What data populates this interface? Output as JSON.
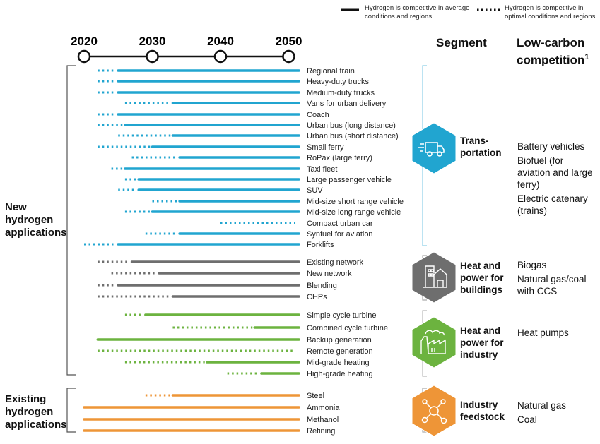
{
  "legend": {
    "solid": "Hydrogen is competitive in average conditions and regions",
    "dotted": "Hydrogen is competitive in optimal conditions and regions"
  },
  "headers": {
    "segment": "Segment",
    "competition": "Low-carbon competition",
    "competition_footnote": "1"
  },
  "groups": {
    "new": "New hydrogen applications",
    "existing": "Existing hydrogen applications"
  },
  "chart_data": {
    "type": "timeline",
    "timeline_ticks": [
      "2020",
      "2030",
      "2040",
      "2050"
    ],
    "colors": {
      "Transportation": "#21a5d0",
      "Heat and power for buildings": "#6e6e6e",
      "Heat and power for industry": "#6cb33f",
      "Industry feedstock": "#ee9537"
    },
    "segments": [
      {
        "name": "Transportation",
        "label_lines": [
          "Trans-",
          "portation"
        ],
        "icon": "truck-icon",
        "competition": [
          "Battery vehicles",
          "Biofuel (for aviation and large ferry)",
          "Electric catenary (trains)"
        ],
        "rows": [
          {
            "label": "Regional train",
            "optimal_from": 2022,
            "average_from": 2025
          },
          {
            "label": "Heavy-duty trucks",
            "optimal_from": 2022,
            "average_from": 2025
          },
          {
            "label": "Medium-duty trucks",
            "optimal_from": 2022,
            "average_from": 2025
          },
          {
            "label": "Vans for urban delivery",
            "optimal_from": 2026,
            "average_from": 2033
          },
          {
            "label": "Coach",
            "optimal_from": 2022,
            "average_from": 2025
          },
          {
            "label": "Urban bus (long distance)",
            "optimal_from": 2022,
            "average_from": 2026
          },
          {
            "label": "Urban bus (short distance)",
            "optimal_from": 2025,
            "average_from": 2033
          },
          {
            "label": "Small ferry",
            "optimal_from": 2022,
            "average_from": 2030
          },
          {
            "label": "RoPax (large ferry)",
            "optimal_from": 2027,
            "average_from": 2034
          },
          {
            "label": "Taxi fleet",
            "optimal_from": 2024,
            "average_from": 2026
          },
          {
            "label": "Large passenger vehicle",
            "optimal_from": 2026,
            "average_from": 2028
          },
          {
            "label": "SUV",
            "optimal_from": 2025,
            "average_from": 2028
          },
          {
            "label": "Mid-size short range vehicle",
            "optimal_from": 2030,
            "average_from": 2034
          },
          {
            "label": "Mid-size long range vehicle",
            "optimal_from": 2026,
            "average_from": 2030
          },
          {
            "label": "Compact urban car",
            "optimal_from": 2040,
            "average_from": null
          },
          {
            "label": "Synfuel for aviation",
            "optimal_from": 2029,
            "average_from": 2034
          },
          {
            "label": "Forklifts",
            "optimal_from": 2020,
            "average_from": 2025
          }
        ]
      },
      {
        "name": "Heat and power for buildings",
        "label_lines": [
          "Heat and",
          "power for",
          "buildings"
        ],
        "icon": "building-icon",
        "competition": [
          "Biogas",
          "Natural gas/coal with CCS"
        ],
        "rows": [
          {
            "label": "Existing network",
            "optimal_from": 2022,
            "average_from": 2027
          },
          {
            "label": "New network",
            "optimal_from": 2024,
            "average_from": 2031
          },
          {
            "label": "Blending",
            "optimal_from": 2022,
            "average_from": 2025
          },
          {
            "label": "CHPs",
            "optimal_from": 2022,
            "average_from": 2033
          }
        ]
      },
      {
        "name": "Heat and power for industry",
        "label_lines": [
          "Heat and",
          "power for",
          "industry"
        ],
        "icon": "factory-icon",
        "competition": [
          "Heat pumps"
        ],
        "rows": [
          {
            "label": "Simple cycle turbine",
            "optimal_from": 2026,
            "average_from": 2029
          },
          {
            "label": "Combined cycle turbine",
            "optimal_from": 2033,
            "average_from": 2045
          },
          {
            "label": "Backup generation",
            "optimal_from": null,
            "average_from": 2022
          },
          {
            "label": "Remote generation",
            "optimal_from": 2022,
            "average_from": null
          },
          {
            "label": "Mid-grade heating",
            "optimal_from": 2026,
            "average_from": 2038
          },
          {
            "label": "High-grade heating",
            "optimal_from": 2041,
            "average_from": 2046
          }
        ]
      },
      {
        "name": "Industry feedstock",
        "label_lines": [
          "Industry",
          "feedstock"
        ],
        "icon": "molecule-icon",
        "competition": [
          "Natural gas",
          "Coal"
        ],
        "rows": [
          {
            "label": "Steel",
            "optimal_from": 2029,
            "average_from": 2033
          },
          {
            "label": "Ammonia",
            "optimal_from": null,
            "average_from": 2020
          },
          {
            "label": "Methanol",
            "optimal_from": null,
            "average_from": 2020
          },
          {
            "label": "Refining",
            "optimal_from": null,
            "average_from": 2020
          }
        ]
      }
    ]
  }
}
